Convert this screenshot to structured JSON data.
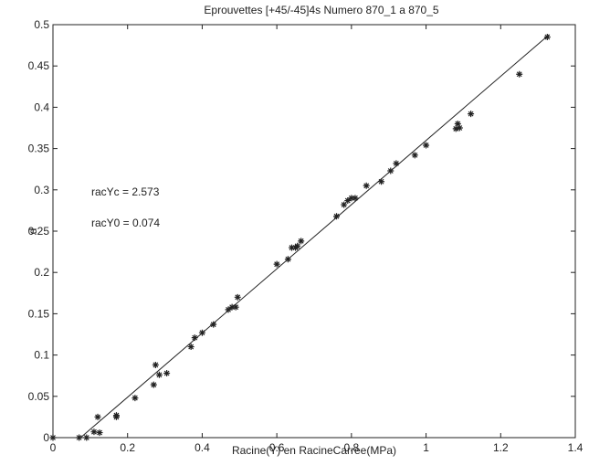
{
  "chart_data": {
    "type": "scatter",
    "title": "Eprouvettes [+45/-45]4s Numero 870_1 a 870_5",
    "xlabel": "Racine(Y) en RacineCarree(MPa)",
    "ylabel": "d",
    "xlim": [
      0,
      1.4
    ],
    "ylim": [
      0,
      0.5
    ],
    "xticks": [
      "0",
      "0.2",
      "0.4",
      "0.6",
      "0.8",
      "1",
      "1.2",
      "1.4"
    ],
    "yticks": [
      "0",
      "0.05",
      "0.1",
      "0.15",
      "0.2",
      "0.25",
      "0.3",
      "0.35",
      "0.4",
      "0.45",
      "0.5"
    ],
    "grid": false,
    "marker": "asterisk",
    "annotations": [
      "racYc = 2.573",
      "racY0 = 0.074"
    ],
    "series": [
      {
        "style": "markers",
        "points": [
          [
            0.0,
            0.0
          ],
          [
            0.07,
            0.0
          ],
          [
            0.09,
            0.0
          ],
          [
            0.11,
            0.007
          ],
          [
            0.125,
            0.006
          ],
          [
            0.12,
            0.025
          ],
          [
            0.17,
            0.027
          ],
          [
            0.17,
            0.025
          ],
          [
            0.22,
            0.048
          ],
          [
            0.27,
            0.064
          ],
          [
            0.275,
            0.088
          ],
          [
            0.285,
            0.076
          ],
          [
            0.305,
            0.078
          ],
          [
            0.37,
            0.11
          ],
          [
            0.38,
            0.121
          ],
          [
            0.4,
            0.127
          ],
          [
            0.43,
            0.137
          ],
          [
            0.47,
            0.155
          ],
          [
            0.48,
            0.158
          ],
          [
            0.49,
            0.158
          ],
          [
            0.495,
            0.17
          ],
          [
            0.6,
            0.21
          ],
          [
            0.63,
            0.216
          ],
          [
            0.64,
            0.23
          ],
          [
            0.65,
            0.23
          ],
          [
            0.655,
            0.232
          ],
          [
            0.665,
            0.238
          ],
          [
            0.76,
            0.268
          ],
          [
            0.78,
            0.282
          ],
          [
            0.79,
            0.287
          ],
          [
            0.8,
            0.29
          ],
          [
            0.81,
            0.29
          ],
          [
            0.84,
            0.305
          ],
          [
            0.88,
            0.31
          ],
          [
            0.905,
            0.323
          ],
          [
            0.92,
            0.332
          ],
          [
            0.97,
            0.342
          ],
          [
            1.0,
            0.354
          ],
          [
            1.08,
            0.374
          ],
          [
            1.09,
            0.375
          ],
          [
            1.085,
            0.38
          ],
          [
            1.12,
            0.392
          ],
          [
            1.25,
            0.44
          ],
          [
            1.325,
            0.485
          ]
        ]
      },
      {
        "style": "line",
        "points": [
          [
            0.074,
            0.0
          ],
          [
            1.33,
            0.488
          ]
        ]
      }
    ]
  }
}
